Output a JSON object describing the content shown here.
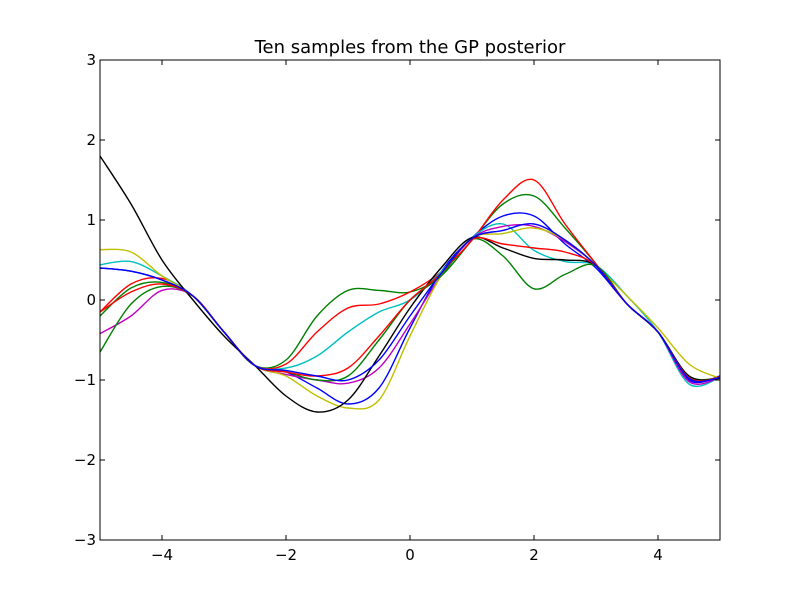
{
  "chart_data": {
    "type": "line",
    "title": "Ten samples from the GP posterior",
    "xlabel": "",
    "ylabel": "",
    "xlim": [
      -5,
      5
    ],
    "ylim": [
      -3,
      3
    ],
    "xticks": [
      -4,
      -2,
      0,
      2,
      4
    ],
    "yticks": [
      -3,
      -2,
      -1,
      0,
      1,
      2,
      3
    ],
    "xtick_labels": [
      "−4",
      "−2",
      "0",
      "2",
      "4"
    ],
    "ytick_labels": [
      "−3",
      "−2",
      "−1",
      "0",
      "1",
      "2",
      "3"
    ],
    "grid": false,
    "legend": "none",
    "x": [
      -5,
      -4.5,
      -4,
      -3.5,
      -3,
      -2.5,
      -2,
      -1.5,
      -1,
      -0.5,
      0,
      0.5,
      1,
      1.5,
      2,
      2.5,
      3,
      3.5,
      4,
      4.5,
      5
    ],
    "series": [
      {
        "color": "#0000ff",
        "values": [
          0.4,
          0.36,
          0.25,
          0.05,
          -0.4,
          -0.82,
          -0.9,
          -1.1,
          -1.3,
          -1.1,
          -0.35,
          0.35,
          0.78,
          1.05,
          1.05,
          0.7,
          0.4,
          -0.05,
          -0.4,
          -1.0,
          -0.95
        ]
      },
      {
        "color": "#008000",
        "values": [
          -0.2,
          0.15,
          0.22,
          0.05,
          -0.4,
          -0.82,
          -0.75,
          -0.2,
          0.12,
          0.12,
          0.1,
          0.3,
          0.75,
          1.2,
          1.3,
          0.9,
          0.45,
          -0.05,
          -0.4,
          -0.95,
          -0.97
        ]
      },
      {
        "color": "#ff0000",
        "values": [
          -0.15,
          0.2,
          0.27,
          0.05,
          -0.4,
          -0.82,
          -0.8,
          -0.4,
          -0.1,
          -0.05,
          0.1,
          0.35,
          0.75,
          1.25,
          1.5,
          0.95,
          0.45,
          -0.05,
          -0.4,
          -0.98,
          -0.96
        ]
      },
      {
        "color": "#00bfbf",
        "values": [
          0.44,
          0.48,
          0.3,
          0.05,
          -0.4,
          -0.82,
          -0.85,
          -0.7,
          -0.4,
          -0.15,
          0.0,
          0.35,
          0.78,
          0.95,
          0.62,
          0.48,
          0.43,
          0.05,
          -0.4,
          -1.05,
          -0.97
        ]
      },
      {
        "color": "#bf00bf",
        "values": [
          -0.42,
          -0.2,
          0.12,
          0.05,
          -0.4,
          -0.82,
          -0.93,
          -1.0,
          -1.04,
          -0.85,
          -0.3,
          0.3,
          0.77,
          0.92,
          0.92,
          0.73,
          0.43,
          -0.05,
          -0.4,
          -1.02,
          -0.97
        ]
      },
      {
        "color": "#bfbf00",
        "values": [
          0.63,
          0.6,
          0.3,
          0.05,
          -0.4,
          -0.82,
          -0.95,
          -1.2,
          -1.35,
          -1.25,
          -0.45,
          0.3,
          0.77,
          0.83,
          0.9,
          0.75,
          0.43,
          0.05,
          -0.35,
          -0.8,
          -0.98
        ]
      },
      {
        "color": "#000000",
        "values": [
          1.8,
          1.2,
          0.5,
          0.0,
          -0.45,
          -0.82,
          -1.2,
          -1.4,
          -1.25,
          -0.7,
          -0.1,
          0.4,
          0.78,
          0.65,
          0.52,
          0.5,
          0.43,
          -0.05,
          -0.4,
          -0.95,
          -0.98
        ]
      },
      {
        "color": "#008000",
        "values": [
          -0.65,
          -0.05,
          0.17,
          0.05,
          -0.4,
          -0.82,
          -0.9,
          -1.0,
          -0.95,
          -0.5,
          0.0,
          0.3,
          0.76,
          0.55,
          0.14,
          0.32,
          0.43,
          -0.05,
          -0.4,
          -0.97,
          -0.97
        ]
      },
      {
        "color": "#ff0000",
        "values": [
          -0.15,
          0.1,
          0.2,
          0.05,
          -0.4,
          -0.82,
          -0.9,
          -0.95,
          -0.85,
          -0.45,
          0.0,
          0.33,
          0.76,
          0.7,
          0.65,
          0.6,
          0.43,
          -0.05,
          -0.4,
          -0.97,
          -0.97
        ]
      },
      {
        "color": "#0000ff",
        "values": [
          0.4,
          0.36,
          0.25,
          0.05,
          -0.4,
          -0.82,
          -0.88,
          -0.95,
          -1.0,
          -0.75,
          -0.2,
          0.33,
          0.77,
          0.87,
          0.95,
          0.75,
          0.43,
          -0.05,
          -0.4,
          -0.98,
          -0.97
        ]
      }
    ]
  }
}
